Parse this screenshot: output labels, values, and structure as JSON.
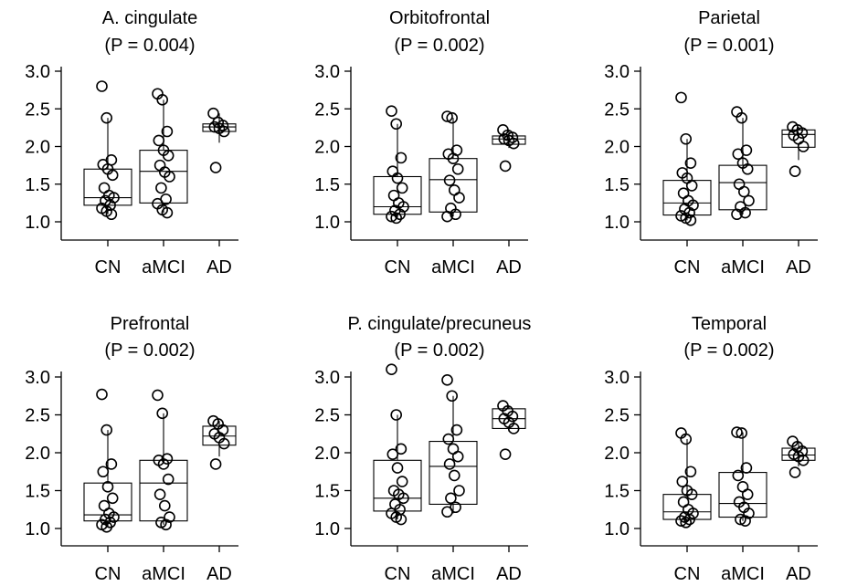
{
  "chart_data": [
    {
      "type": "box",
      "title": "A. cingulate",
      "subtitle": "(P = 0.004)",
      "categories": [
        "CN",
        "aMCI",
        "AD"
      ],
      "ylim": [
        0.9,
        3.15
      ],
      "yticks": [
        "1.0",
        "1.5",
        "2.0",
        "2.5",
        "3.0"
      ],
      "boxes": [
        {
          "min": 1.1,
          "q1": 1.22,
          "median": 1.32,
          "q3": 1.7,
          "max": 2.38
        },
        {
          "min": 1.12,
          "q1": 1.25,
          "median": 1.67,
          "q3": 1.95,
          "max": 2.62
        },
        {
          "min": 2.05,
          "q1": 2.2,
          "median": 2.26,
          "q3": 2.3,
          "max": 2.44
        }
      ],
      "points": [
        [
          2.8,
          2.38,
          1.82,
          1.76,
          1.7,
          1.62,
          1.45,
          1.35,
          1.32,
          1.28,
          1.22,
          1.18,
          1.14,
          1.1
        ],
        [
          2.7,
          2.62,
          2.2,
          2.08,
          1.95,
          1.88,
          1.75,
          1.66,
          1.6,
          1.45,
          1.3,
          1.24,
          1.16,
          1.12
        ],
        [
          2.44,
          2.32,
          2.28,
          2.26,
          2.24,
          2.2,
          1.72
        ]
      ]
    },
    {
      "type": "box",
      "title": "Orbitofrontal",
      "subtitle": "(P = 0.002)",
      "categories": [
        "CN",
        "aMCI",
        "AD"
      ],
      "ylim": [
        0.9,
        3.15
      ],
      "yticks": [
        "1.0",
        "1.5",
        "2.0",
        "2.5",
        "3.0"
      ],
      "boxes": [
        {
          "min": 1.05,
          "q1": 1.1,
          "median": 1.2,
          "q3": 1.6,
          "max": 2.3
        },
        {
          "min": 1.07,
          "q1": 1.13,
          "median": 1.56,
          "q3": 1.84,
          "max": 2.38
        },
        {
          "min": 1.98,
          "q1": 2.03,
          "median": 2.1,
          "q3": 2.14,
          "max": 2.22
        }
      ],
      "points": [
        [
          2.47,
          2.3,
          1.85,
          1.67,
          1.58,
          1.45,
          1.35,
          1.25,
          1.2,
          1.15,
          1.1,
          1.07,
          1.05
        ],
        [
          2.4,
          2.38,
          1.95,
          1.9,
          1.84,
          1.7,
          1.55,
          1.42,
          1.32,
          1.18,
          1.1,
          1.07
        ],
        [
          2.22,
          2.15,
          2.12,
          2.1,
          2.08,
          2.04,
          1.74
        ]
      ]
    },
    {
      "type": "box",
      "title": "Parietal",
      "subtitle": "(P = 0.001)",
      "categories": [
        "CN",
        "aMCI",
        "AD"
      ],
      "ylim": [
        0.9,
        3.15
      ],
      "yticks": [
        "1.0",
        "1.5",
        "2.0",
        "2.5",
        "3.0"
      ],
      "boxes": [
        {
          "min": 1.02,
          "q1": 1.09,
          "median": 1.25,
          "q3": 1.55,
          "max": 2.1
        },
        {
          "min": 1.1,
          "q1": 1.16,
          "median": 1.52,
          "q3": 1.75,
          "max": 2.38
        },
        {
          "min": 1.82,
          "q1": 1.99,
          "median": 2.16,
          "q3": 2.22,
          "max": 2.26
        }
      ],
      "points": [
        [
          2.65,
          2.1,
          1.78,
          1.65,
          1.58,
          1.48,
          1.38,
          1.28,
          1.22,
          1.17,
          1.12,
          1.08,
          1.05,
          1.02
        ],
        [
          2.46,
          2.38,
          1.95,
          1.9,
          1.78,
          1.7,
          1.5,
          1.4,
          1.28,
          1.2,
          1.12,
          1.1
        ],
        [
          2.26,
          2.22,
          2.18,
          2.15,
          2.1,
          2.0,
          1.67
        ]
      ]
    },
    {
      "type": "box",
      "title": "Prefrontal",
      "subtitle": "(P = 0.002)",
      "categories": [
        "CN",
        "aMCI",
        "AD"
      ],
      "ylim": [
        0.9,
        3.15
      ],
      "yticks": [
        "1.0",
        "1.5",
        "2.0",
        "2.5",
        "3.0"
      ],
      "boxes": [
        {
          "min": 1.02,
          "q1": 1.1,
          "median": 1.18,
          "q3": 1.6,
          "max": 2.3
        },
        {
          "min": 1.05,
          "q1": 1.1,
          "median": 1.6,
          "q3": 1.9,
          "max": 2.52
        },
        {
          "min": 1.95,
          "q1": 2.1,
          "median": 2.22,
          "q3": 2.35,
          "max": 2.42
        }
      ],
      "points": [
        [
          2.77,
          2.3,
          1.85,
          1.75,
          1.55,
          1.4,
          1.3,
          1.2,
          1.15,
          1.12,
          1.08,
          1.05,
          1.02
        ],
        [
          2.76,
          2.52,
          1.92,
          1.9,
          1.85,
          1.65,
          1.45,
          1.3,
          1.15,
          1.08,
          1.05
        ],
        [
          2.42,
          2.38,
          2.3,
          2.25,
          2.2,
          2.12,
          1.85
        ]
      ]
    },
    {
      "type": "box",
      "title": "P. cingulate/precuneus",
      "subtitle": "(P = 0.002)",
      "categories": [
        "CN",
        "aMCI",
        "AD"
      ],
      "ylim": [
        0.9,
        3.15
      ],
      "yticks": [
        "1.0",
        "1.5",
        "2.0",
        "2.5",
        "3.0"
      ],
      "boxes": [
        {
          "min": 1.12,
          "q1": 1.23,
          "median": 1.4,
          "q3": 1.9,
          "max": 2.5
        },
        {
          "min": 1.2,
          "q1": 1.32,
          "median": 1.82,
          "q3": 2.15,
          "max": 2.75
        },
        {
          "min": 2.28,
          "q1": 2.32,
          "median": 2.45,
          "q3": 2.58,
          "max": 2.62
        }
      ],
      "points": [
        [
          3.1,
          2.5,
          2.05,
          1.98,
          1.8,
          1.62,
          1.5,
          1.45,
          1.4,
          1.32,
          1.25,
          1.2,
          1.15,
          1.12
        ],
        [
          2.96,
          2.75,
          2.3,
          2.18,
          2.05,
          1.95,
          1.85,
          1.7,
          1.5,
          1.4,
          1.28,
          1.22
        ],
        [
          2.62,
          2.55,
          2.48,
          2.45,
          2.4,
          2.32,
          1.98
        ]
      ]
    },
    {
      "type": "box",
      "title": "Temporal",
      "subtitle": "(P = 0.002)",
      "categories": [
        "CN",
        "aMCI",
        "AD"
      ],
      "ylim": [
        0.9,
        3.15
      ],
      "yticks": [
        "1.0",
        "1.5",
        "2.0",
        "2.5",
        "3.0"
      ],
      "boxes": [
        {
          "min": 1.08,
          "q1": 1.12,
          "median": 1.22,
          "q3": 1.45,
          "max": 2.18
        },
        {
          "min": 1.1,
          "q1": 1.15,
          "median": 1.33,
          "q3": 1.74,
          "max": 2.27
        },
        {
          "min": 1.82,
          "q1": 1.9,
          "median": 1.97,
          "q3": 2.06,
          "max": 2.15
        }
      ],
      "points": [
        [
          2.26,
          2.18,
          1.75,
          1.62,
          1.5,
          1.45,
          1.35,
          1.25,
          1.2,
          1.15,
          1.12,
          1.1,
          1.08
        ],
        [
          2.27,
          2.26,
          1.8,
          1.7,
          1.55,
          1.45,
          1.35,
          1.28,
          1.2,
          1.12,
          1.1
        ],
        [
          2.15,
          2.08,
          2.02,
          1.98,
          1.95,
          1.9,
          1.74
        ]
      ]
    }
  ]
}
